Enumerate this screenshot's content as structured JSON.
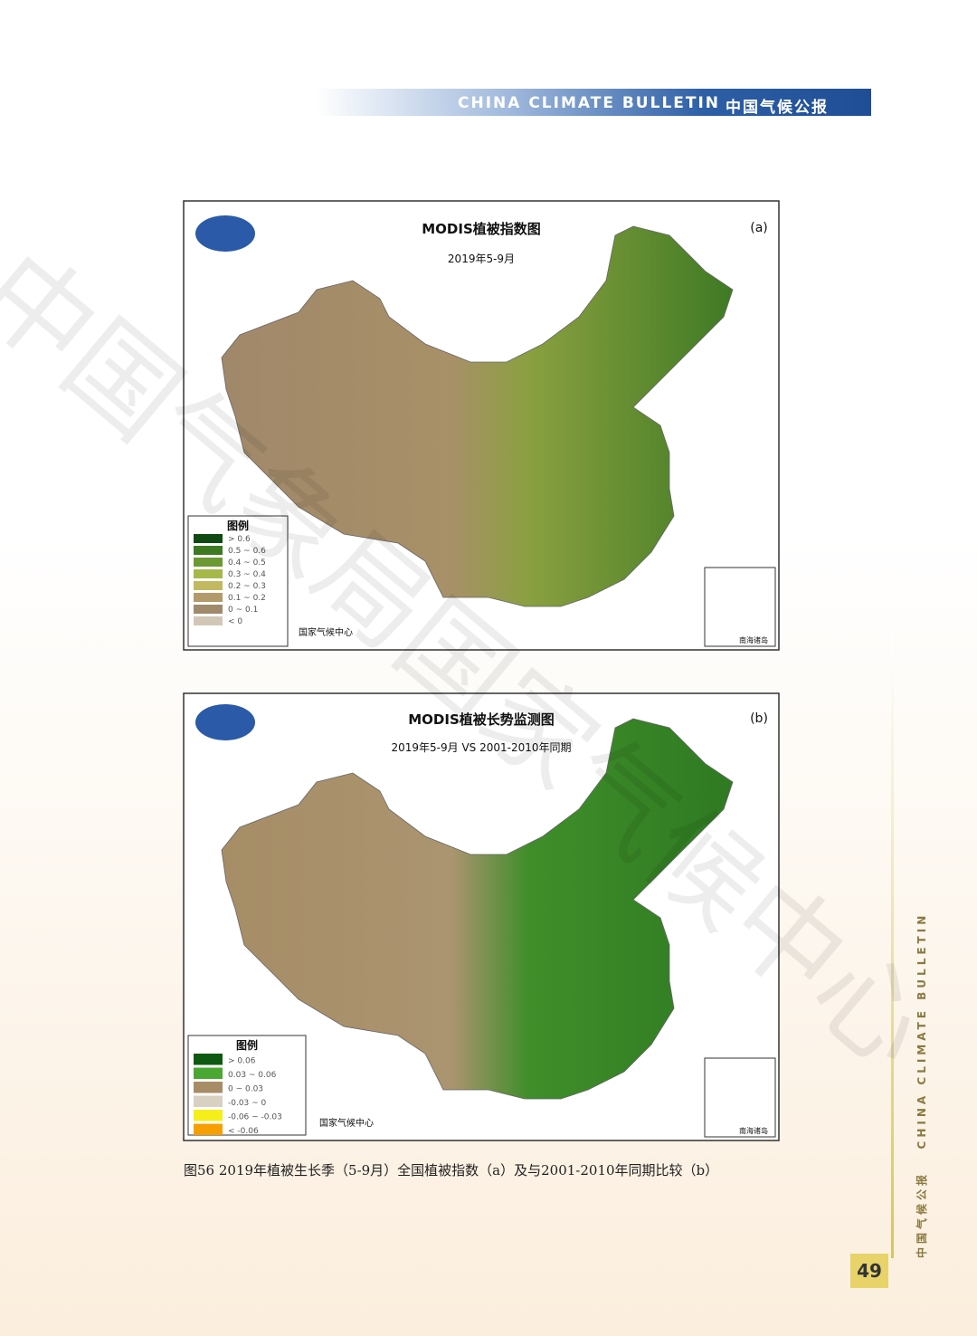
{
  "header": {
    "en": "CHINA CLIMATE BULLETIN",
    "zh": "中国气候公报"
  },
  "figures": [
    {
      "title": "MODIS植被指数图",
      "subtitle": "2019年5-9月",
      "panel": "(a)",
      "legend_title": "图例",
      "legend": [
        {
          "color": "#0f4a12",
          "label": "> 0.6"
        },
        {
          "color": "#3d7a22",
          "label": "0.5 ~ 0.6"
        },
        {
          "color": "#6b9a33",
          "label": "0.4 ~ 0.5"
        },
        {
          "color": "#a6b84a",
          "label": "0.3 ~ 0.4"
        },
        {
          "color": "#c2b860",
          "label": "0.2 ~ 0.3"
        },
        {
          "color": "#b39a6a",
          "label": "0.1 ~ 0.2"
        },
        {
          "color": "#a08a6c",
          "label": "0 ~ 0.1"
        },
        {
          "color": "#d2c7b7",
          "label": "< 0"
        }
      ],
      "credit": "国家气候中心",
      "inset": "南海诸岛"
    },
    {
      "title": "MODIS植被长势监测图",
      "subtitle": "2019年5-9月 VS 2001-2010年同期",
      "panel": "(b)",
      "legend_title": "图例",
      "legend": [
        {
          "color": "#0f5a12",
          "label": "> 0.06"
        },
        {
          "color": "#4aa832",
          "label": "0.03 ~ 0.06"
        },
        {
          "color": "#a68d66",
          "label": "0 ~ 0.03"
        },
        {
          "color": "#d8d0c0",
          "label": "-0.03 ~ 0"
        },
        {
          "color": "#f5ee1a",
          "label": "-0.06 ~ -0.03"
        },
        {
          "color": "#f5a000",
          "label": "< -0.06"
        }
      ],
      "credit": "国家气候中心",
      "inset": "南海诸岛"
    }
  ],
  "caption": "图56 2019年植被生长季（5-9月）全国植被指数（a）及与2001-2010年同期比较（b）",
  "watermark": "中国气象局国家气候中心",
  "side": {
    "en": "CHINA CLIMATE BULLETIN",
    "zh": "中国气候公报"
  },
  "page_number": "49"
}
